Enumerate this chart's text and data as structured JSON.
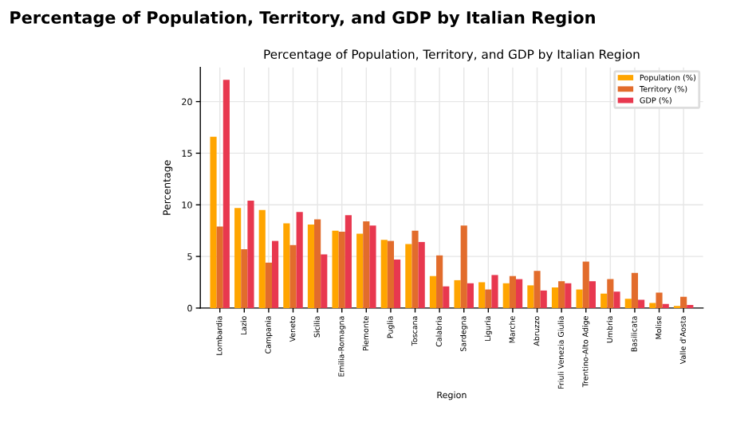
{
  "chart_data": {
    "type": "bar",
    "title": "Percentage of Population, Territory, and GDP by Italian Region",
    "subtitle": "Percentage of Population, Territory, and GDP by Italian Region",
    "xlabel": "Region",
    "ylabel": "Percentage",
    "categories": [
      "Lombardia",
      "Lazio",
      "Campania",
      "Veneto",
      "Sicilia",
      "Emilia-Romagna",
      "Piemonte",
      "Puglia",
      "Toscana",
      "Calabria",
      "Sardegna",
      "Liguria",
      "Marche",
      "Abruzzo",
      "Friuli Venezia Giulia",
      "Trentino-Alto Adige",
      "Umbria",
      "Basilicata",
      "Molise",
      "Valle d'Aosta"
    ],
    "series": [
      {
        "name": "Population (%)",
        "color": "#ffa500",
        "values": [
          16.6,
          9.7,
          9.5,
          8.2,
          8.1,
          7.5,
          7.2,
          6.6,
          6.2,
          3.1,
          2.7,
          2.5,
          2.4,
          2.2,
          2.0,
          1.8,
          1.4,
          0.9,
          0.5,
          0.2
        ]
      },
      {
        "name": "Territory (%)",
        "color": "#e26c2c",
        "values": [
          7.9,
          5.7,
          4.4,
          6.1,
          8.6,
          7.4,
          8.4,
          6.5,
          7.5,
          5.1,
          8.0,
          1.8,
          3.1,
          3.6,
          2.6,
          4.5,
          2.8,
          3.4,
          1.5,
          1.1
        ]
      },
      {
        "name": "GDP (%)",
        "color": "#e8384f",
        "values": [
          22.1,
          10.4,
          6.5,
          9.3,
          5.2,
          9.0,
          8.0,
          4.7,
          6.4,
          2.1,
          2.4,
          3.2,
          2.8,
          1.7,
          2.4,
          2.6,
          1.6,
          0.8,
          0.4,
          0.3
        ]
      }
    ],
    "ylim": [
      0,
      23.3
    ],
    "yticks": [
      0,
      5,
      10,
      15,
      20
    ],
    "grid": true,
    "legend": "top right"
  }
}
